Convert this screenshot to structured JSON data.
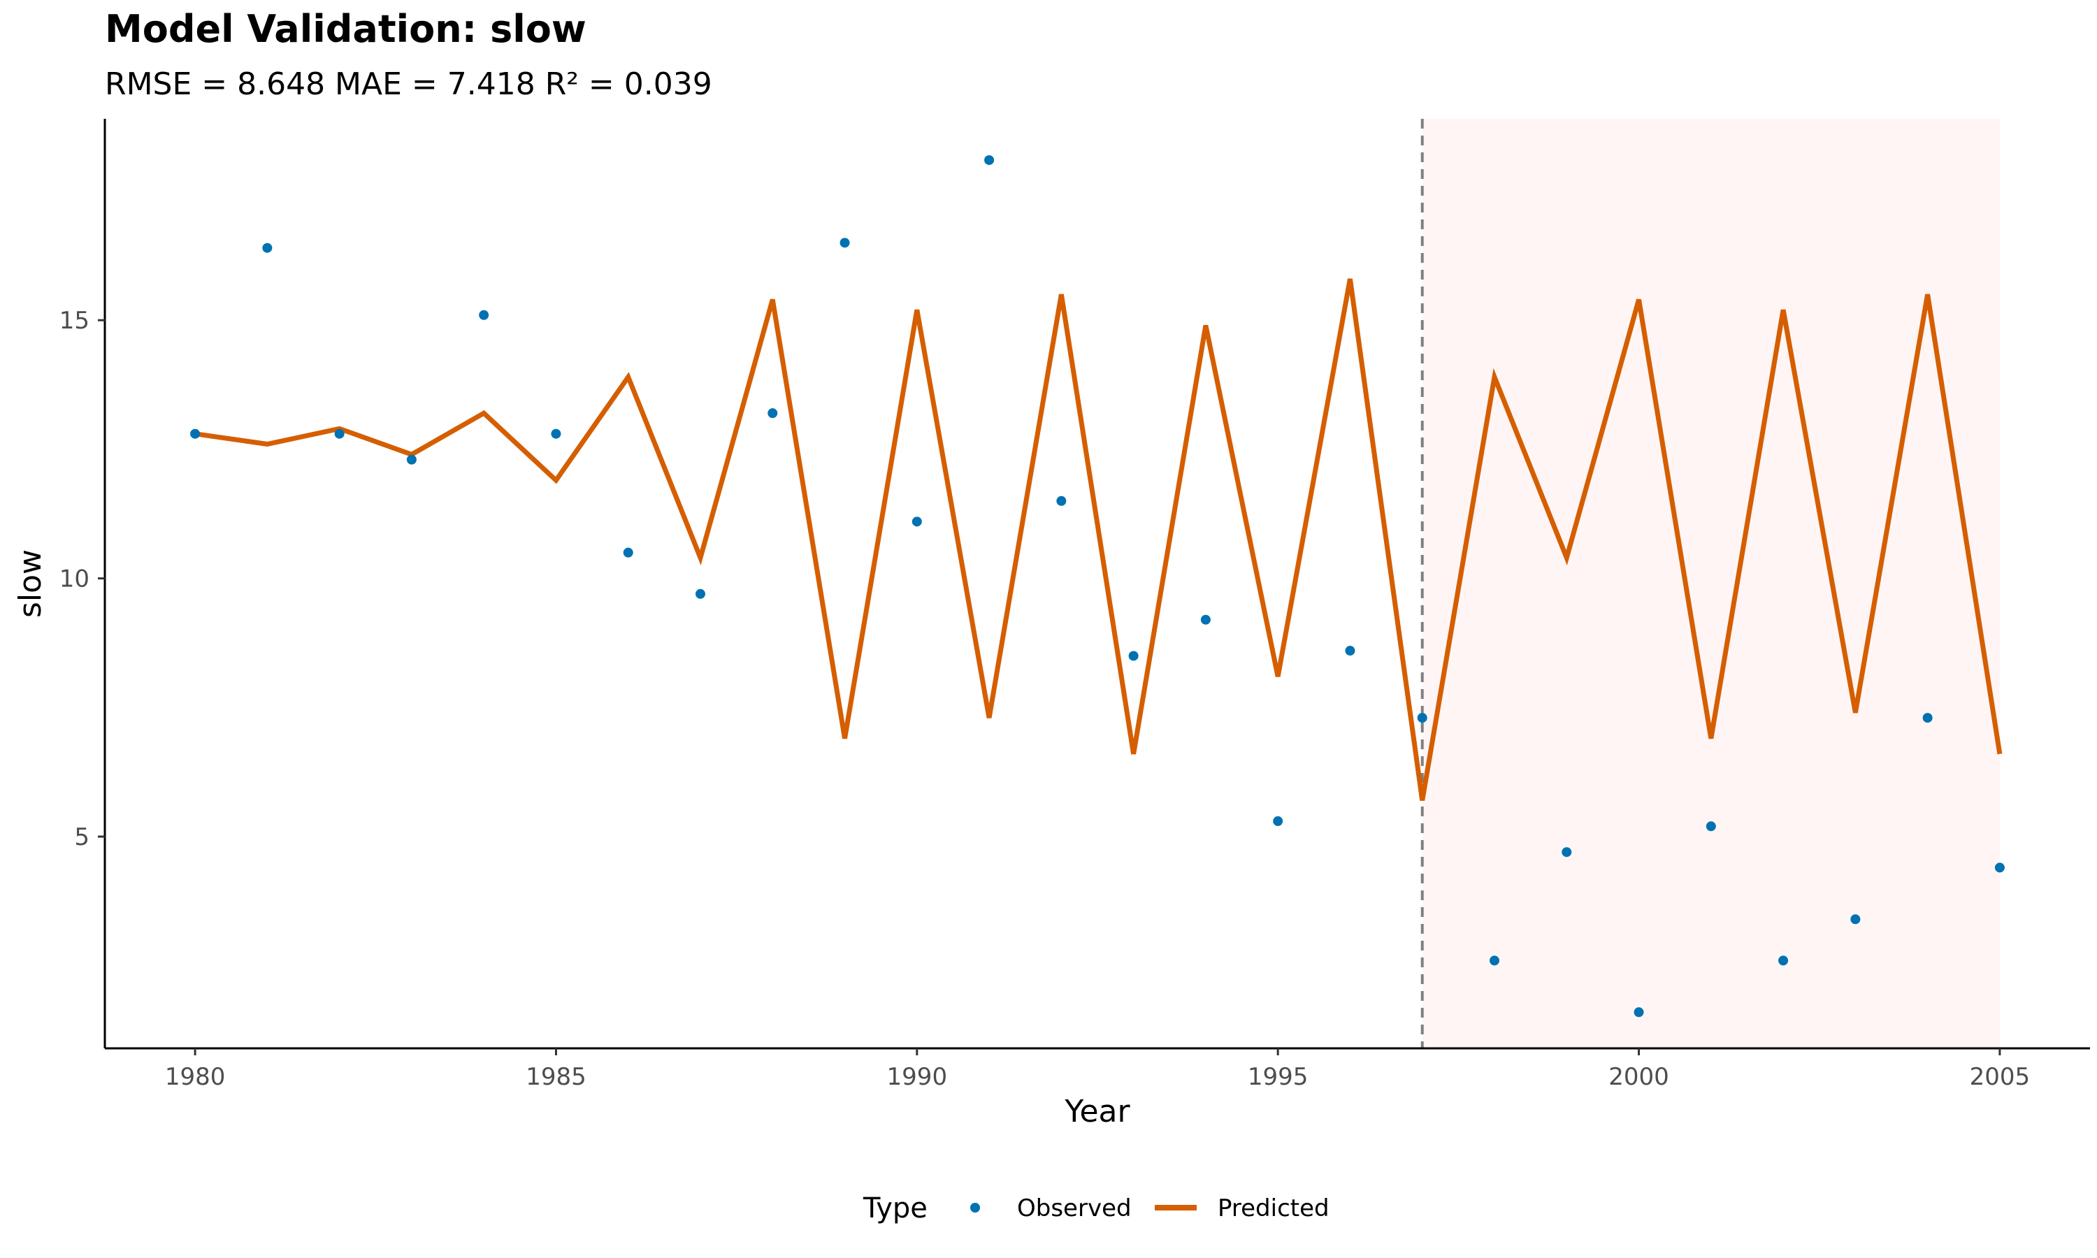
{
  "chart_data": {
    "type": "line",
    "title": "Model Validation: slow",
    "subtitle": "RMSE = 8.648 MAE = 7.418 R² = 0.039",
    "xlabel": "Year",
    "ylabel": "slow",
    "xlim": [
      1978.75,
      2006.25
    ],
    "ylim": [
      0.9,
      18.9
    ],
    "x_ticks": [
      1980,
      1985,
      1990,
      1995,
      2000,
      2005
    ],
    "y_ticks": [
      5,
      10,
      15
    ],
    "grid": false,
    "legend": {
      "title": "Type",
      "position": "bottom"
    },
    "split_year": 1997,
    "test_region": [
      1997,
      2005
    ],
    "x": [
      1980,
      1981,
      1982,
      1983,
      1984,
      1985,
      1986,
      1987,
      1988,
      1989,
      1990,
      1991,
      1992,
      1993,
      1994,
      1995,
      1996,
      1997,
      1998,
      1999,
      2000,
      2001,
      2002,
      2003,
      2004,
      2005
    ],
    "series": [
      {
        "name": "Observed",
        "kind": "point",
        "color": "#0072B2",
        "values": [
          12.8,
          16.4,
          12.8,
          12.3,
          15.1,
          12.8,
          10.5,
          9.7,
          13.2,
          16.5,
          11.1,
          18.1,
          11.5,
          8.5,
          9.2,
          5.3,
          8.6,
          7.3,
          2.6,
          4.7,
          1.6,
          5.2,
          2.6,
          3.4,
          7.3,
          4.4
        ]
      },
      {
        "name": "Predicted",
        "kind": "line",
        "color": "#D55E00",
        "values": [
          12.8,
          12.6,
          12.9,
          12.4,
          13.2,
          11.9,
          13.9,
          10.4,
          15.4,
          6.9,
          15.2,
          7.3,
          15.5,
          6.6,
          14.9,
          8.1,
          15.8,
          5.7,
          13.9,
          10.4,
          15.4,
          6.9,
          15.2,
          7.4,
          15.5,
          6.6
        ]
      }
    ],
    "colors": {
      "split_line": "#808080",
      "test_fill": "#FFF5F4",
      "axis": "#000000"
    }
  }
}
